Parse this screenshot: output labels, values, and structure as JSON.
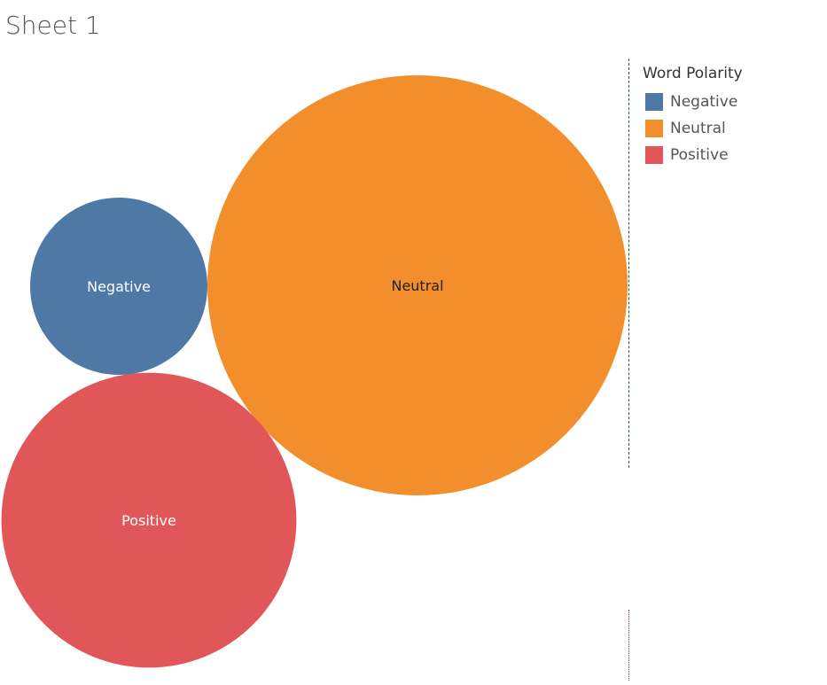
{
  "sheet": {
    "title": "Sheet 1"
  },
  "legend": {
    "title": "Word Polarity",
    "items": [
      {
        "label": "Negative",
        "color": "#4e79a7"
      },
      {
        "label": "Neutral",
        "color": "#f28e2b"
      },
      {
        "label": "Positive",
        "color": "#e15759"
      }
    ]
  },
  "chart_data": {
    "type": "bubble",
    "title": "",
    "size_encoding": "area",
    "series": [
      {
        "name": "Negative",
        "relative_size": 0.178,
        "color": "#4e79a7",
        "label_color": "#ffffff"
      },
      {
        "name": "Neutral",
        "relative_size": 1.0,
        "color": "#f28e2b",
        "label_color": "#222222"
      },
      {
        "name": "Positive",
        "relative_size": 0.493,
        "color": "#e15759",
        "label_color": "#ffffff"
      }
    ]
  }
}
